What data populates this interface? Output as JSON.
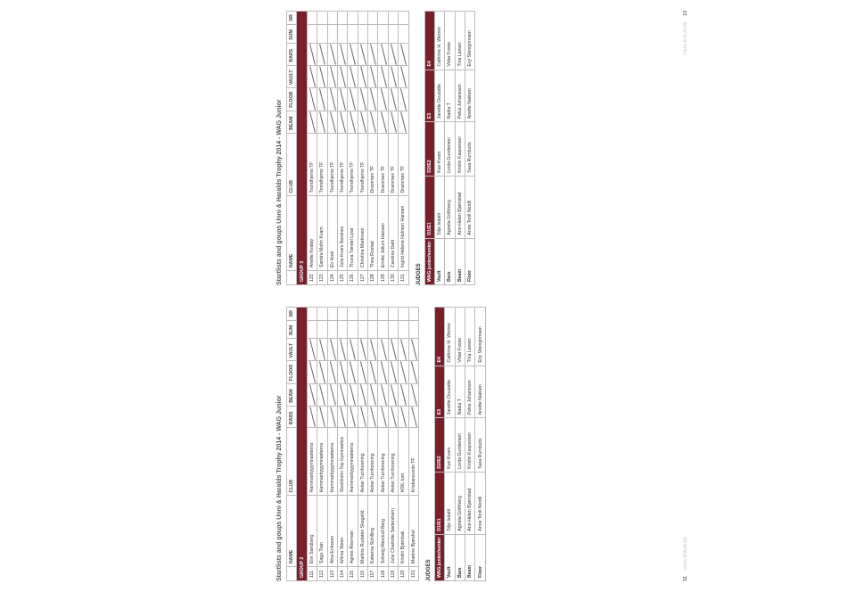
{
  "page_left_num": "12",
  "page_right_num": "13",
  "footer_brand": "U&Hs POKALER",
  "title": "Startlists and goups Unni & Haralds Trophy 2014 - WAG Junior",
  "headers": {
    "no_blank": "",
    "name": "NAME",
    "club": "CLUB",
    "bars": "BARS",
    "beam": "BEAM",
    "floor": "FLOOR",
    "vault": "VAULT",
    "sum": "SUM",
    "nr": "NR"
  },
  "group2": {
    "label": "GROUP 2",
    "rows": [
      {
        "no": "111",
        "name": "Elin Sandberg",
        "club": "Hammarbygymnasterna"
      },
      {
        "no": "112",
        "name": "Saga Tran",
        "club": "Hammarbygymnasterna"
      },
      {
        "no": "113",
        "name": "Alva Eriksson",
        "club": "Hammarbygymnasterna"
      },
      {
        "no": "114",
        "name": "Wilma Steen",
        "club": "Stockholm Top Gymnastics"
      },
      {
        "no": "115",
        "name": "Agnes Åkerman",
        "club": "Hammarbygymnasterna"
      },
      {
        "no": "116",
        "name": "Martine Rustøen Skegelid",
        "club": "Asker Turnforening"
      },
      {
        "no": "117",
        "name": "Katarina Schilling",
        "club": "Asker Turnforening"
      },
      {
        "no": "118",
        "name": "Solveig Merckoll Berg",
        "club": "Asker Turnforening"
      },
      {
        "no": "119",
        "name": "Julie Charlotte Søderstrøm",
        "club": "Asker Turnforening"
      },
      {
        "no": "120",
        "name": "Kristin Bjørnbak",
        "club": "HSIL turn"
      },
      {
        "no": "121",
        "name": "Martine Bjørshol",
        "club": "Kristiansunds TF"
      }
    ]
  },
  "group3": {
    "label": "GROUP 3",
    "rows": [
      {
        "no": "122",
        "name": "Anette Kvaløy",
        "club": "Trondhjems TF"
      },
      {
        "no": "123",
        "name": "Sandra Mohn Kvam",
        "club": "Trondhjems TF"
      },
      {
        "no": "124",
        "name": "Eir Hoel",
        "club": "Trondhjems TF"
      },
      {
        "no": "125",
        "name": "Julie Kvam Nordnes",
        "club": "Trondhjems TF"
      },
      {
        "no": "126",
        "name": "Thuva Tøndel Lysø",
        "club": "Trondhjems TF"
      },
      {
        "no": "127",
        "name": "Christina Martinsen",
        "club": "Trondhjems TF"
      },
      {
        "no": "128",
        "name": "Thea Rostad",
        "club": "Drammen TF"
      },
      {
        "no": "129",
        "name": "Emilie Jellum Hansen",
        "club": "Drammen TF"
      },
      {
        "no": "130",
        "name": "Caroline Dahl",
        "club": "Drammen TF"
      },
      {
        "no": "131",
        "name": "Ingrid Helene Holmen Hansen",
        "club": "Drammen TF"
      }
    ]
  },
  "judges_label": "JUDGES",
  "judge_headers": {
    "cat": "WAG junior/senior",
    "d1": "D1/E1",
    "d2": "D2/E2",
    "e3": "E3",
    "e4": "E4"
  },
  "judge_rows_labels": [
    "Vault",
    "Bars",
    "Beam",
    "Floor"
  ],
  "judges": [
    {
      "d1": "Silje Isdahl",
      "d2": "Kari Kvam",
      "e3": "Janette Doucette",
      "e4": "Cathrine H. Werner"
    },
    {
      "d1": "Agneta Göthberg",
      "d2": "Linda Gundersen",
      "e3": "Nadia T",
      "e4": "Vidar Fosse"
    },
    {
      "d1": "Ann-Helen Bjørnstad",
      "d2": "Kristin Kaspersen",
      "e3": "Petra Johansson",
      "e4": "Tina Larsen"
    },
    {
      "d1": "Anne Torill Nordli",
      "d2": "Sara Rumbutis",
      "e3": "Anette Nakken",
      "e4": "Evy Steingrimsen"
    }
  ],
  "colors": {
    "accent": "#7a1f2a",
    "border": "#bbbbbb",
    "text": "#333333",
    "footer": "#aaaaaa"
  }
}
